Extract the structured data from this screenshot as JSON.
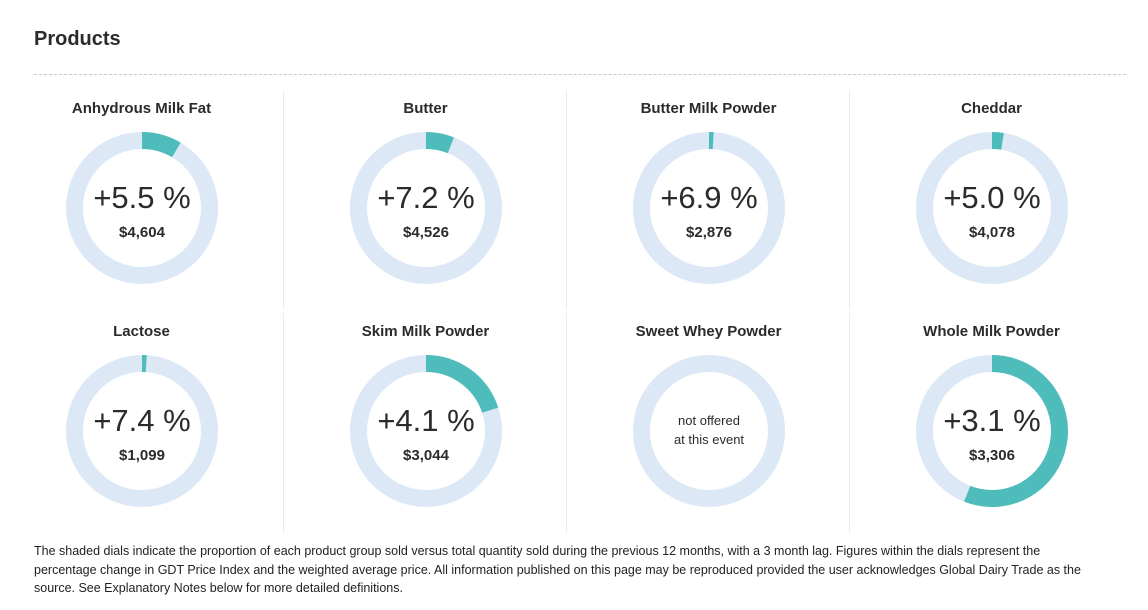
{
  "header": {
    "title": "Products"
  },
  "colors": {
    "fill": "#4fbcbc",
    "track": "#dce8f6"
  },
  "products": [
    {
      "name": "Anhydrous Milk Fat",
      "change": "+5.5 %",
      "price": "$4,604",
      "share": 0.085
    },
    {
      "name": "Butter",
      "change": "+7.2 %",
      "price": "$4,526",
      "share": 0.06
    },
    {
      "name": "Butter Milk Powder",
      "change": "+6.9 %",
      "price": "$2,876",
      "share": 0.01
    },
    {
      "name": "Cheddar",
      "change": "+5.0 %",
      "price": "$4,078",
      "share": 0.025
    },
    {
      "name": "Lactose",
      "change": "+7.4 %",
      "price": "$1,099",
      "share": 0.01
    },
    {
      "name": "Skim Milk Powder",
      "change": "+4.1 %",
      "price": "$3,044",
      "share": 0.2
    },
    {
      "name": "Sweet Whey Powder",
      "not_offered_line1": "not offered",
      "not_offered_line2": "at this event",
      "share": 0
    },
    {
      "name": "Whole Milk Powder",
      "change": "+3.1 %",
      "price": "$3,306",
      "share": 0.56
    }
  ],
  "footer": {
    "text": "The shaded dials indicate the proportion of each product group sold versus total quantity sold during the previous 12 months, with a 3 month lag. Figures within the dials represent the percentage change in GDT Price Index and the weighted average price. All information published on this page may be reproduced provided the user acknowledges Global Dairy Trade as the source. See Explanatory Notes below for more detailed definitions."
  }
}
